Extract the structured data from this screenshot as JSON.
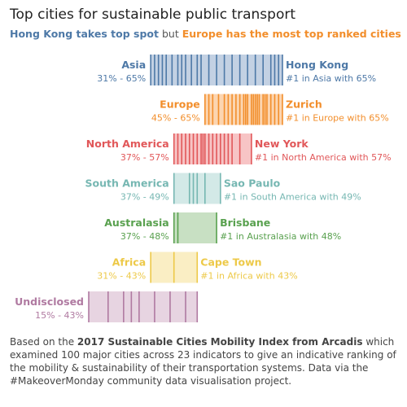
{
  "title": "Top cities for sustainable public transport",
  "subtitle": {
    "part1": "Hong Kong takes top spot",
    "part2": " but ",
    "part3": "Europe has the most top ranked cities"
  },
  "footnote": {
    "pre": "Based on the ",
    "bold": "2017 Sustainable Cities Mobility Index from Arcadis",
    "post": " which examined 100 major cities across 23 indicators to give an indicative ranking of the mobility & sustainability of their transportation systems. Data via the #MakeoverMonday community data visualisation project."
  },
  "chart_data": {
    "type": "bar",
    "xlim": [
      15,
      65
    ],
    "regions": [
      {
        "name": "Asia",
        "range": "31% - 65%",
        "min": 31,
        "max": 65,
        "color": "#4e79a7",
        "fill": "#c3d1e3",
        "top_city": "Hong Kong",
        "top_label": "#1 in Asia with 65%",
        "cities": [
          31,
          32,
          33,
          34,
          35,
          36.5,
          38,
          39,
          40,
          41.5,
          43,
          44,
          46,
          48,
          50,
          52,
          54,
          56,
          58,
          60,
          62,
          63,
          64,
          65
        ]
      },
      {
        "name": "Europe",
        "range": "45% - 65%",
        "min": 45,
        "max": 65,
        "color": "#f28e2b",
        "fill": "#fcd5b0",
        "top_city": "Zurich",
        "top_label": "#1 in Europe with 65%",
        "cities": [
          45,
          46,
          47,
          48.5,
          50,
          51,
          52,
          53,
          54,
          55,
          55.5,
          56,
          57,
          57.5,
          58,
          58.5,
          59,
          60,
          60.5,
          61,
          62,
          63,
          64,
          65
        ]
      },
      {
        "name": "North America",
        "range": "37% - 57%",
        "min": 37,
        "max": 57,
        "color": "#e15759",
        "fill": "#f7c4c5",
        "top_city": "New York",
        "top_label": "#1 in North America with 57%",
        "cities": [
          37,
          38,
          39,
          40,
          41,
          42,
          43,
          44,
          44.5,
          45,
          46,
          47,
          48,
          49,
          50,
          51,
          52,
          54,
          57
        ]
      },
      {
        "name": "South America",
        "range": "37% - 49%",
        "min": 37,
        "max": 49,
        "color": "#76b7b2",
        "fill": "#d3e9e7",
        "top_city": "Sao Paulo",
        "top_label": "#1 in South America with 49%",
        "cities": [
          37,
          41,
          42,
          43,
          45,
          49
        ]
      },
      {
        "name": "Australasia",
        "range": "37% - 48%",
        "min": 37,
        "max": 48,
        "color": "#59a14f",
        "fill": "#c8e0c3",
        "top_city": "Brisbane",
        "top_label": "#1 in Australasia with 48%",
        "cities": [
          37,
          38,
          48
        ]
      },
      {
        "name": "Africa",
        "range": "31% - 43%",
        "min": 31,
        "max": 43,
        "color": "#edc948",
        "fill": "#faeec4",
        "top_city": "Cape Town",
        "top_label": "#1 in Africa with 43%",
        "cities": [
          31,
          37,
          43
        ]
      },
      {
        "name": "Undisclosed",
        "range": "15% - 43%",
        "min": 15,
        "max": 43,
        "color": "#b07aa1",
        "fill": "#e7d4e1",
        "top_city": "",
        "top_label": "",
        "cities": [
          15,
          20,
          24,
          26,
          28,
          32,
          36,
          40,
          43
        ]
      }
    ]
  }
}
